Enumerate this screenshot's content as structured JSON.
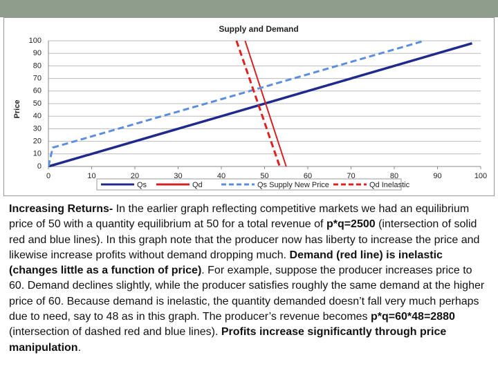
{
  "chart_data": {
    "type": "line",
    "title": "Supply and Demand",
    "y_label": "Price",
    "xlim": [
      0,
      100
    ],
    "xticks": [
      0,
      10,
      20,
      30,
      40,
      50,
      60,
      70,
      80,
      90,
      100
    ],
    "ylim": [
      0,
      100
    ],
    "yticks": [
      0,
      10,
      20,
      30,
      40,
      50,
      60,
      70,
      80,
      90,
      100
    ],
    "grid": true,
    "legend": "bottom",
    "series": [
      {
        "name": "Qs",
        "color": "#1f2a8c",
        "dashed": false,
        "x": [
          0,
          98
        ],
        "values": [
          0,
          98
        ]
      },
      {
        "name": "Qd",
        "color": "#d42020",
        "dashed": false,
        "x": [
          45.5,
          55
        ],
        "values": [
          100,
          0
        ]
      },
      {
        "name": "Qs Supply New Price",
        "color": "#5b8ee0",
        "dashed": true,
        "x": [
          0,
          1,
          87
        ],
        "values": [
          0,
          15,
          100
        ]
      },
      {
        "name": "Qd Inelastic",
        "color": "#e02020",
        "dashed": true,
        "x": [
          43.5,
          53.5
        ],
        "values": [
          100,
          0
        ]
      }
    ]
  },
  "text": {
    "segments": [
      {
        "text": "Increasing Returns-",
        "bold": true
      },
      {
        "text": " In the earlier graph reflecting competitive markets we had an equilibrium price of 50 with a quantity equilibrium at 50 for a total revenue of ",
        "bold": false
      },
      {
        "text": "p*q=2500",
        "bold": true
      },
      {
        "text": " (intersection of solid red and blue lines). In this graph note that the producer now has liberty to increase the price and likewise increase profits without demand dropping much. ",
        "bold": false
      },
      {
        "text": "Demand (red line) is inelastic (changes little as a function of price)",
        "bold": true
      },
      {
        "text": ". For example, suppose the producer increases price to 60. Demand declines slightly, while the producer satisfies roughly the same demand at the higher price of 60. Because demand is inelastic, the quantity demanded doesn’t fall very much perhaps due to need, say to 48 as in this graph. The producer’s revenue becomes ",
        "bold": false
      },
      {
        "text": "p*q=60*48=2880",
        "bold": true
      },
      {
        "text": " (intersection of dashed red and blue lines). ",
        "bold": false
      },
      {
        "text": "Profits increase significantly through price manipulation",
        "bold": true
      },
      {
        "text": ".",
        "bold": false
      }
    ]
  }
}
